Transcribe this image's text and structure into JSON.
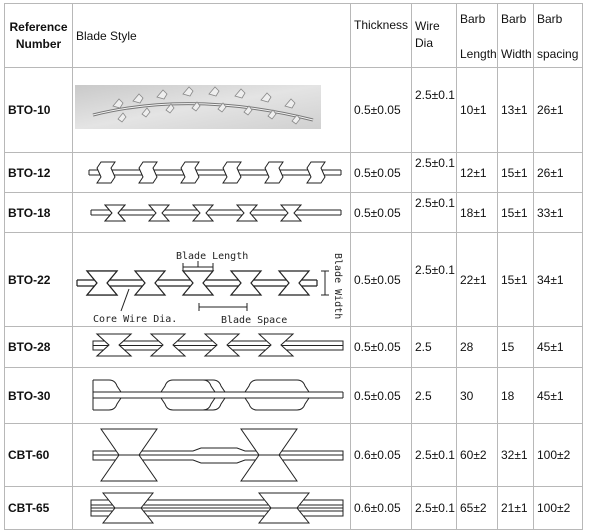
{
  "headers": {
    "ref_line1": "Reference",
    "ref_line2": "Number",
    "blade_style": "Blade   Style",
    "thickness": "Thickness",
    "wire_line1": "Wire",
    "wire_line2": "Dia",
    "barb_length_line1": "Barb",
    "barb_length_line2": "Length",
    "barb_width_line1": "Barb",
    "barb_width_line2": "Width",
    "barb_spacing_line1": "Barb",
    "barb_spacing_line2": "spacing"
  },
  "rows": [
    {
      "code": "BTO-10",
      "thickness": "0.5±0.05",
      "wire": "2.5±0.1",
      "length": "10±1",
      "width": "13±1",
      "spacing": "26±1"
    },
    {
      "code": "BTO-12",
      "thickness": "0.5±0.05",
      "wire": "2.5±0.1",
      "length": "12±1",
      "width": "15±1",
      "spacing": "26±1"
    },
    {
      "code": "BTO-18",
      "thickness": "0.5±0.05",
      "wire": "2.5±0.1",
      "length": "18±1",
      "width": "15±1",
      "spacing": "33±1"
    },
    {
      "code": "BTO-22",
      "thickness": "0.5±0.05",
      "wire": "2.5±0.1",
      "length": "22±1",
      "width": "15±1",
      "spacing": "34±1"
    },
    {
      "code": "BTO-28",
      "thickness": "0.5±0.05",
      "wire": "2.5",
      "length": "28",
      "width": "15",
      "spacing": "45±1"
    },
    {
      "code": "BTO-30",
      "thickness": "0.5±0.05",
      "wire": "2.5",
      "length": "30",
      "width": "18",
      "spacing": "45±1"
    },
    {
      "code": "CBT-60",
      "thickness": "0.6±0.05",
      "wire": "2.5±0.1",
      "length": "60±2",
      "width": "32±1",
      "spacing": "100±2"
    },
    {
      "code": "CBT-65",
      "thickness": "0.6±0.05",
      "wire": "2.5±0.1",
      "length": "65±2",
      "width": "21±1",
      "spacing": "100±2"
    }
  ],
  "diagram_labels": {
    "blade_length": "Blade Length",
    "core_wire": "Core Wire Dia.",
    "blade_space": "Blade Space",
    "blade_width": "Blade Width"
  }
}
